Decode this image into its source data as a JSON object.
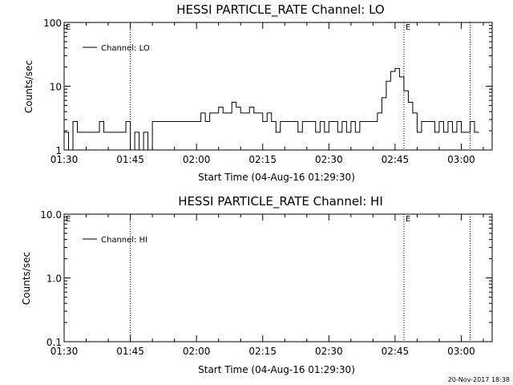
{
  "chart_data": [
    {
      "type": "line",
      "title": "HESSI PARTICLE_RATE Channel: LO",
      "xlabel": "Start Time (04-Aug-16 01:29:30)",
      "ylabel": "Counts/sec",
      "yscale": "log",
      "ylim": [
        1,
        100
      ],
      "yticks": [
        "1",
        "10",
        "100"
      ],
      "xticks": [
        "01:30",
        "01:45",
        "02:00",
        "02:15",
        "02:30",
        "02:45",
        "03:00"
      ],
      "xlim": [
        "01:30",
        "03:07"
      ],
      "grid": false,
      "legend": "top-left",
      "markers": [
        {
          "time": "01:45",
          "label": ""
        },
        {
          "time": "02:47",
          "label": "E"
        },
        {
          "time": "03:02",
          "label": ""
        }
      ],
      "series": [
        {
          "name": "Channel: LO",
          "x": [
            "01:30",
            "01:31",
            "01:32",
            "01:33",
            "01:34",
            "01:35",
            "01:36",
            "01:37",
            "01:38",
            "01:39",
            "01:40",
            "01:41",
            "01:42",
            "01:43",
            "01:44",
            "01:45",
            "01:46",
            "01:47",
            "01:48",
            "01:49",
            "01:50",
            "01:51",
            "01:52",
            "01:53",
            "01:54",
            "01:55",
            "01:56",
            "01:57",
            "01:58",
            "01:59",
            "02:00",
            "02:01",
            "02:02",
            "02:03",
            "02:04",
            "02:05",
            "02:06",
            "02:07",
            "02:08",
            "02:09",
            "02:10",
            "02:11",
            "02:12",
            "02:13",
            "02:14",
            "02:15",
            "02:16",
            "02:17",
            "02:18",
            "02:19",
            "02:20",
            "02:21",
            "02:22",
            "02:23",
            "02:24",
            "02:25",
            "02:26",
            "02:27",
            "02:28",
            "02:29",
            "02:30",
            "02:31",
            "02:32",
            "02:33",
            "02:34",
            "02:35",
            "02:36",
            "02:37",
            "02:38",
            "02:39",
            "02:40",
            "02:41",
            "02:42",
            "02:43",
            "02:44",
            "02:45",
            "02:46",
            "02:47",
            "02:48",
            "02:49",
            "02:50",
            "02:51",
            "02:52",
            "02:53",
            "02:54",
            "02:55",
            "02:56",
            "02:57",
            "02:58",
            "02:59",
            "03:00",
            "03:01",
            "03:02",
            "03:03"
          ],
          "values": [
            1.9,
            1.0,
            2.8,
            1.9,
            1.9,
            1.9,
            1.9,
            1.9,
            2.8,
            1.9,
            1.9,
            1.9,
            1.9,
            1.9,
            2.8,
            1.0,
            1.9,
            1.0,
            1.9,
            1.0,
            2.8,
            2.8,
            2.8,
            2.8,
            2.8,
            2.8,
            2.8,
            2.8,
            2.8,
            2.8,
            2.8,
            3.8,
            2.8,
            3.8,
            3.8,
            4.7,
            3.8,
            3.8,
            5.6,
            4.7,
            3.8,
            3.8,
            4.7,
            3.8,
            3.8,
            2.8,
            3.8,
            2.8,
            1.9,
            2.8,
            2.8,
            2.8,
            2.8,
            1.9,
            2.8,
            2.8,
            2.8,
            1.9,
            2.8,
            1.9,
            2.8,
            2.8,
            1.9,
            2.8,
            1.9,
            2.8,
            1.9,
            2.8,
            2.8,
            2.8,
            2.8,
            3.8,
            6.6,
            12.0,
            17.0,
            19.0,
            14.0,
            8.5,
            5.6,
            3.8,
            1.9,
            2.8,
            2.8,
            2.8,
            1.9,
            2.8,
            1.9,
            2.8,
            1.9,
            2.8,
            1.9,
            1.9,
            2.8,
            1.9
          ]
        }
      ],
      "side_labels": {
        "left_top": "E",
        "right_top": "E"
      }
    },
    {
      "type": "line",
      "title": "HESSI PARTICLE_RATE Channel: HI",
      "xlabel": "Start Time (04-Aug-16 01:29:30)",
      "ylabel": "Counts/sec",
      "yscale": "log",
      "ylim": [
        0.1,
        10.0
      ],
      "yticks": [
        "0.1",
        "1.0",
        "10.0"
      ],
      "xticks": [
        "01:30",
        "01:45",
        "02:00",
        "02:15",
        "02:30",
        "02:45",
        "03:00"
      ],
      "xlim": [
        "01:30",
        "03:07"
      ],
      "grid": false,
      "legend": "top-left",
      "markers": [
        {
          "time": "01:45",
          "label": ""
        },
        {
          "time": "02:47",
          "label": "E"
        },
        {
          "time": "03:02",
          "label": ""
        }
      ],
      "series": [
        {
          "name": "Channel: HI",
          "x": [],
          "values": []
        }
      ],
      "side_labels": {
        "left_top": "E",
        "right_top": "E"
      }
    }
  ],
  "footer": {
    "timestamp": "20-Nov-2017 18:38"
  }
}
